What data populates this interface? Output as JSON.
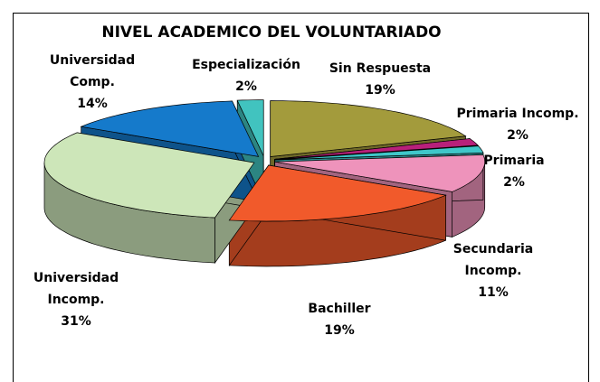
{
  "chart_data": {
    "type": "pie3d",
    "title": "NIVEL ACADEMICO DEL VOLUNTARIADO",
    "categories": [
      "Sin Respuesta",
      "Primaria Incomp.",
      "Primaria",
      "Secundaria Incomp.",
      "Bachiller",
      "Universidad Incomp.",
      "Universidad Comp.",
      "Especialización"
    ],
    "values": [
      19,
      2,
      2,
      11,
      19,
      31,
      14,
      2
    ],
    "value_labels": [
      "19%",
      "2%",
      "2%",
      "11%",
      "19%",
      "31%",
      "14%",
      "2%"
    ],
    "colors": [
      "#a39b3c",
      "#b8207a",
      "#3fc7c9",
      "#ee93bb",
      "#f15a2b",
      "#cde6b9",
      "#157acb",
      "#41c3bf"
    ]
  }
}
